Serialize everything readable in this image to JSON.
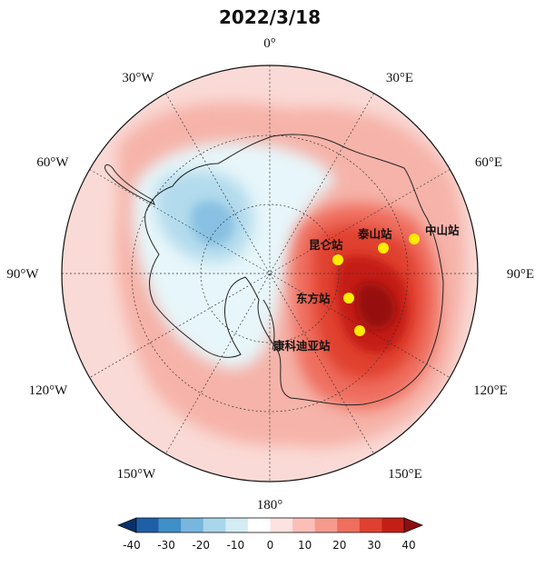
{
  "title": "2022/3/18",
  "longitude_labels": {
    "n": "0°",
    "ne30": "30°E",
    "ne60": "60°E",
    "e": "90°E",
    "se120": "120°E",
    "se150": "150°E",
    "s": "180°",
    "sw150": "150°W",
    "sw120": "120°W",
    "w": "90°W",
    "nw60": "60°W",
    "nw30": "30°W"
  },
  "stations": [
    {
      "name": "昆仑站"
    },
    {
      "name": "泰山站"
    },
    {
      "name": "中山站"
    },
    {
      "name": "东方站"
    },
    {
      "name": "康科迪亚站"
    }
  ],
  "station_color": "#ffeb00",
  "colorbar": {
    "ticks": [
      "-40",
      "-30",
      "-20",
      "-10",
      "0",
      "10",
      "20",
      "30",
      "40"
    ],
    "colors": [
      "#08306b",
      "#1f5fa8",
      "#3f8fc8",
      "#78b6de",
      "#a9d6ea",
      "#d4ecf4",
      "#ffffff",
      "#fde2e0",
      "#fbbfb8",
      "#f59a8d",
      "#ef6e5e",
      "#e0402f",
      "#c41f17",
      "#8e0e0e"
    ]
  }
}
